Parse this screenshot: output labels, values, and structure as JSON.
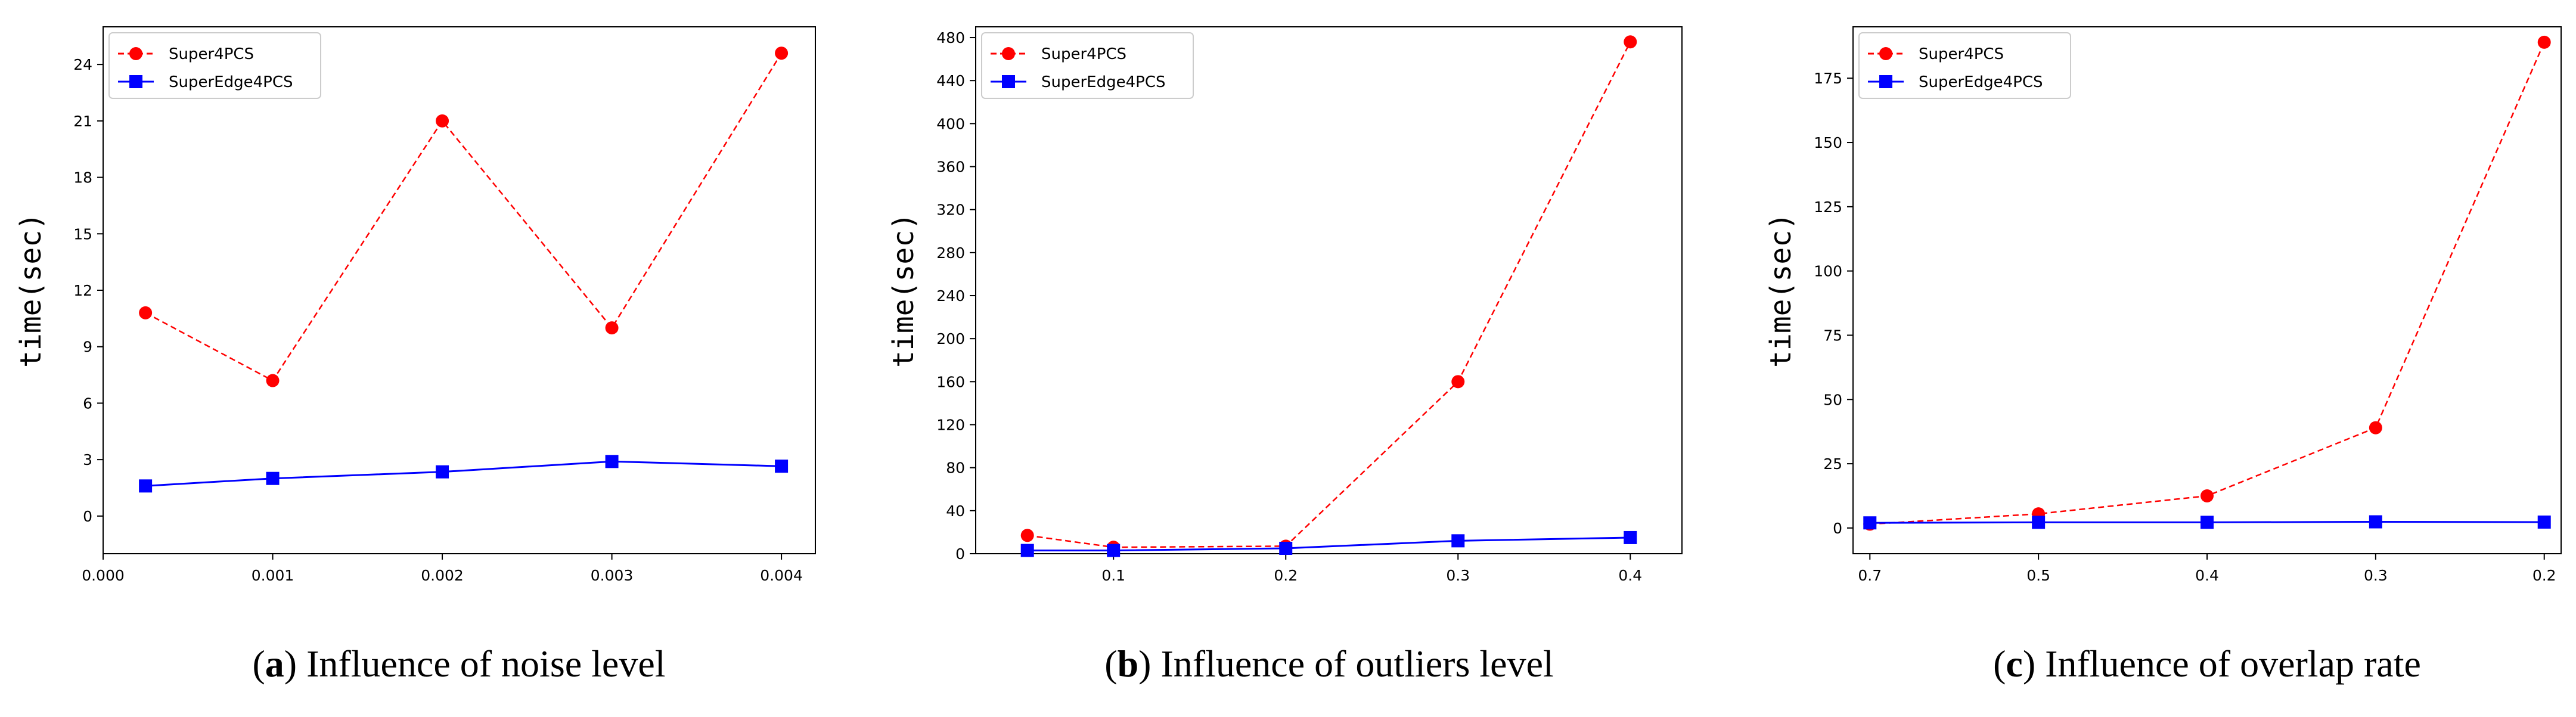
{
  "colors": {
    "super4pcs": "#ff0000",
    "superedge4pcs": "#0000ff"
  },
  "chart_data": [
    {
      "type": "line",
      "panel": "a",
      "caption": "Influence of noise level",
      "ylabel": "time(sec)",
      "xlim": [
        0,
        0.0042
      ],
      "xticks": [
        0,
        0.001,
        0.002,
        0.003,
        0.004
      ],
      "xtick_labels": [
        "0.000",
        "0.001",
        "0.002",
        "0.003",
        "0.004"
      ],
      "ylim": [
        -2,
        26
      ],
      "yticks": [
        0,
        3,
        6,
        9,
        12,
        15,
        18,
        21,
        24
      ],
      "ytick_labels": [
        "0",
        "3",
        "6",
        "9",
        "12",
        "15",
        "18",
        "21",
        "24"
      ],
      "legend": "top-left",
      "series": [
        {
          "name": "Super4PCS",
          "x": [
            0.00025,
            0.001,
            0.002,
            0.003,
            0.004
          ],
          "values": [
            10.8,
            7.2,
            21.0,
            10.0,
            24.6
          ]
        },
        {
          "name": "SuperEdge4PCS",
          "x": [
            0.00025,
            0.001,
            0.002,
            0.003,
            0.004
          ],
          "values": [
            1.6,
            2.0,
            2.35,
            2.9,
            2.65
          ]
        }
      ]
    },
    {
      "type": "line",
      "panel": "b",
      "caption": "Influence of outliers level",
      "ylabel": "time(sec)",
      "xlim": [
        0.02,
        0.43
      ],
      "xticks": [
        0.1,
        0.2,
        0.3,
        0.4
      ],
      "xtick_labels": [
        "0.1",
        "0.2",
        "0.3",
        "0.4"
      ],
      "ylim": [
        0,
        490
      ],
      "yticks": [
        0,
        40,
        80,
        120,
        160,
        200,
        240,
        280,
        320,
        360,
        400,
        440,
        480
      ],
      "ytick_labels": [
        "0",
        "40",
        "80",
        "120",
        "160",
        "200",
        "240",
        "280",
        "320",
        "360",
        "400",
        "440",
        "480"
      ],
      "legend": "top-left",
      "series": [
        {
          "name": "Super4PCS",
          "x": [
            0.05,
            0.1,
            0.2,
            0.3,
            0.4
          ],
          "values": [
            17,
            6,
            7,
            160,
            476
          ]
        },
        {
          "name": "SuperEdge4PCS",
          "x": [
            0.05,
            0.1,
            0.2,
            0.3,
            0.4
          ],
          "values": [
            3,
            3,
            5,
            12,
            15
          ]
        }
      ]
    },
    {
      "type": "line",
      "panel": "c",
      "caption": "Influence of overlap rate",
      "ylabel": "time(sec)",
      "xlim": [
        -0.1,
        4.1
      ],
      "xticks": [
        0,
        1,
        2,
        3,
        4
      ],
      "xtick_labels": [
        "0.7",
        "0.5",
        "0.4",
        "0.3",
        "0.2"
      ],
      "ylim": [
        -10,
        195
      ],
      "yticks": [
        0,
        25,
        50,
        75,
        100,
        125,
        150,
        175
      ],
      "ytick_labels": [
        "0",
        "25",
        "50",
        "75",
        "100",
        "125",
        "150",
        "175"
      ],
      "legend": "top-left",
      "series": [
        {
          "name": "Super4PCS",
          "x": [
            0,
            1,
            2,
            3,
            4
          ],
          "values": [
            1.5,
            5.5,
            12.5,
            39,
            189
          ]
        },
        {
          "name": "SuperEdge4PCS",
          "x": [
            0,
            1,
            2,
            3,
            4
          ],
          "values": [
            2.0,
            2.2,
            2.2,
            2.4,
            2.3
          ]
        }
      ]
    }
  ]
}
